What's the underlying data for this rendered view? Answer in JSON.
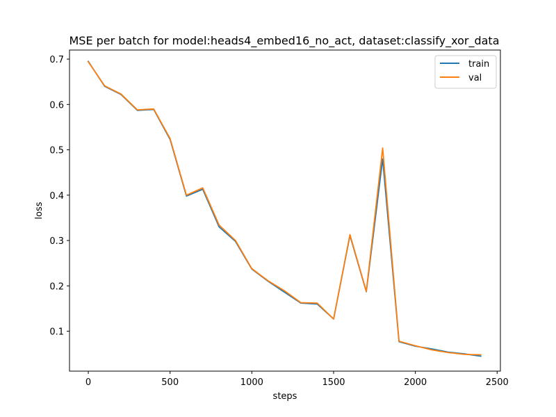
{
  "chart_data": {
    "type": "line",
    "title": "MSE per batch for model:heads4_embed16_no_act, dataset:classify_xor_data",
    "xlabel": "steps",
    "ylabel": "loss",
    "xlim": [
      -115,
      2520
    ],
    "ylim": [
      0.012,
      0.72
    ],
    "xticks": [
      0,
      500,
      1000,
      1500,
      2000,
      2500
    ],
    "xtick_labels": [
      "0",
      "500",
      "1000",
      "1500",
      "2000",
      "2500"
    ],
    "yticks": [
      0.1,
      0.2,
      0.3,
      0.4,
      0.5,
      0.6,
      0.7
    ],
    "ytick_labels": [
      "0.1",
      "0.2",
      "0.3",
      "0.4",
      "0.5",
      "0.6",
      "0.7"
    ],
    "grid": false,
    "legend_position": "top-right",
    "x": [
      0,
      100,
      200,
      300,
      400,
      500,
      600,
      700,
      800,
      900,
      1000,
      1100,
      1200,
      1300,
      1400,
      1500,
      1600,
      1700,
      1800,
      1900,
      2000,
      2100,
      2200,
      2300,
      2400
    ],
    "series": [
      {
        "name": "train",
        "color": "#1f77b4",
        "values": [
          0.695,
          0.64,
          0.622,
          0.587,
          0.589,
          0.523,
          0.398,
          0.413,
          0.33,
          0.298,
          0.237,
          0.21,
          0.186,
          0.162,
          0.16,
          0.127,
          0.311,
          0.187,
          0.48,
          0.077,
          0.067,
          0.061,
          0.054,
          0.05,
          0.045
        ]
      },
      {
        "name": "val",
        "color": "#ff7f0e",
        "values": [
          0.694,
          0.641,
          0.623,
          0.588,
          0.59,
          0.525,
          0.4,
          0.416,
          0.334,
          0.3,
          0.238,
          0.211,
          0.189,
          0.163,
          0.162,
          0.127,
          0.313,
          0.188,
          0.504,
          0.078,
          0.068,
          0.059,
          0.053,
          0.049,
          0.048
        ]
      }
    ]
  }
}
